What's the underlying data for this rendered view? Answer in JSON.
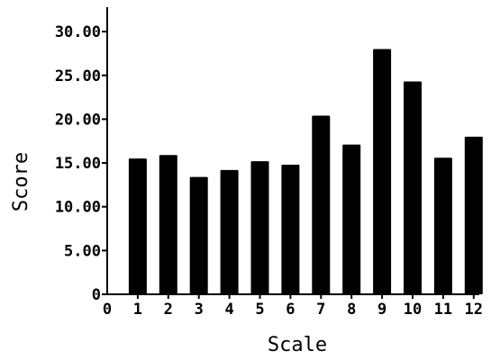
{
  "chart_data": {
    "type": "bar",
    "title": "",
    "xlabel": "Scale",
    "ylabel": "Score",
    "categories": [
      "1",
      "2",
      "3",
      "4",
      "5",
      "6",
      "7",
      "8",
      "9",
      "10",
      "11",
      "12"
    ],
    "values": [
      15.5,
      15.9,
      13.4,
      14.2,
      15.2,
      14.8,
      20.4,
      17.1,
      28.0,
      24.3,
      15.6,
      18.0
    ],
    "ylim": [
      0,
      32
    ],
    "y_ticks": [
      "0",
      "5.00",
      "10.00",
      "15.00",
      "20.00",
      "25.00",
      "30.00"
    ],
    "y_tick_values": [
      0,
      5,
      10,
      15,
      20,
      25,
      30
    ],
    "x_origin_label": "0",
    "grid": false,
    "bar_color": "#000000"
  }
}
